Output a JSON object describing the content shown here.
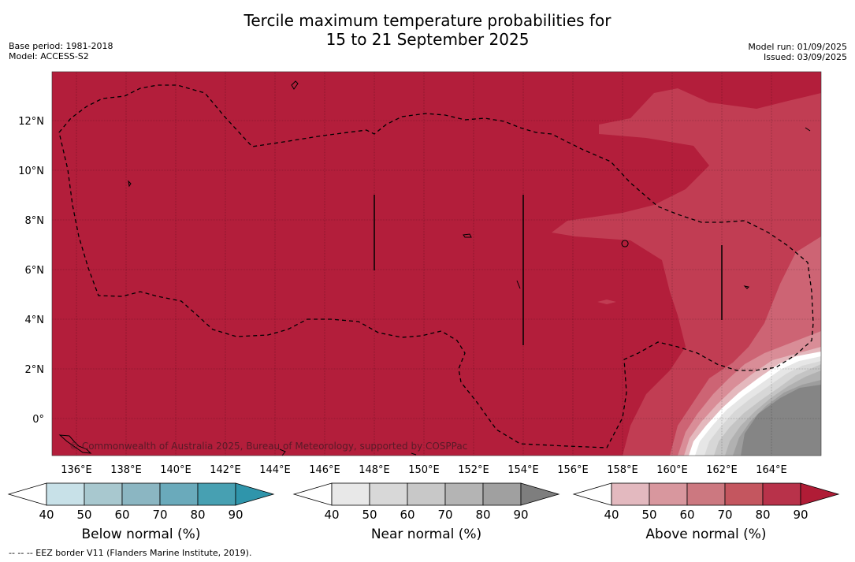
{
  "header": {
    "title_line1": "Tercile maximum temperature probabilities for",
    "title_line2": "15 to 21 September 2025",
    "base_period": "Base period: 1981-2018",
    "model": "Model: ACCESS-S2",
    "model_run": "Model run: 01/09/2025",
    "issued": "Issued: 03/09/2025"
  },
  "map": {
    "copyright": "© Commonwealth of Australia 2025, Bureau of Meteorology, supported by COSPPac",
    "lon_ticks": [
      "136°E",
      "138°E",
      "140°E",
      "142°E",
      "144°E",
      "146°E",
      "148°E",
      "150°E",
      "152°E",
      "154°E",
      "156°E",
      "158°E",
      "160°E",
      "162°E",
      "164°E"
    ],
    "lat_ticks": [
      "12°N",
      "10°N",
      "8°N",
      "6°N",
      "4°N",
      "2°N",
      "0°"
    ],
    "colors": {
      "above_90": "#b31e3b",
      "above_80": "#c13d53",
      "above_70": "#cd6474",
      "above_60": "#d98d97",
      "above_50": "#e4b8bd",
      "near_40": "#e6e6e6",
      "near_50": "#d7d7d7",
      "near_60": "#c4c4c4",
      "near_70": "#b1b1b1",
      "near_80": "#9d9d9d",
      "near_90": "#858585"
    }
  },
  "colorbars": {
    "ticks": [
      "40",
      "50",
      "60",
      "70",
      "80",
      "90"
    ],
    "below": {
      "label": "Below normal (%)",
      "colors": [
        "#ffffff",
        "#c8e1e8",
        "#a8c8cf",
        "#8bb6c2",
        "#6aaabb",
        "#47a0b2",
        "#2f95ab"
      ]
    },
    "near": {
      "label": "Near normal (%)",
      "colors": [
        "#ffffff",
        "#e8e8e8",
        "#d8d8d8",
        "#c8c8c8",
        "#b4b4b4",
        "#a0a0a0",
        "#7e7e7e"
      ]
    },
    "above": {
      "label": "Above normal (%)",
      "colors": [
        "#ffffff",
        "#e3b9bf",
        "#d8979e",
        "#cc7880",
        "#c4565f",
        "#b8324a",
        "#b01c36"
      ]
    }
  },
  "footnote": "--  --  -- EEZ border V11 (Flanders Marine Institute, 2019)."
}
